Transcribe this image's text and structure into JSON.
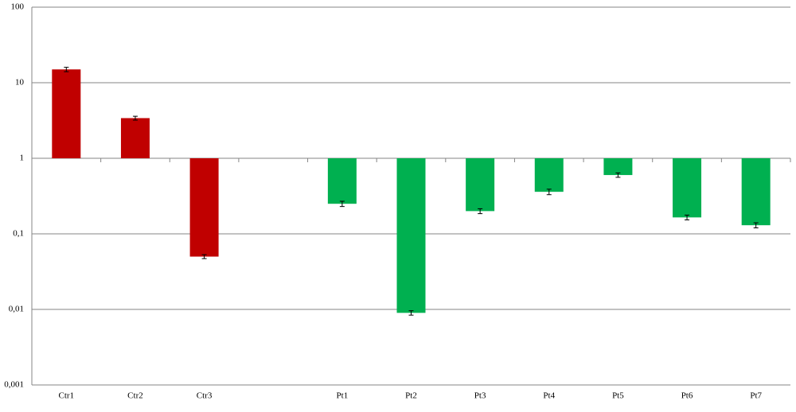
{
  "chart_data": {
    "type": "bar",
    "categories": [
      "Ctr1",
      "Ctr2",
      "Ctr3",
      null,
      "Pt1",
      "Pt2",
      "Pt3",
      "Pt4",
      "Pt5",
      "Pt6",
      "Pt7"
    ],
    "values": [
      15,
      3.4,
      0.05,
      null,
      0.25,
      0.009,
      0.2,
      0.36,
      0.6,
      0.165,
      0.13
    ],
    "errors": [
      1,
      0.2,
      0.003,
      null,
      0.02,
      0.0006,
      0.015,
      0.03,
      0.04,
      0.012,
      0.01
    ],
    "colors": [
      "#c00000",
      "#c00000",
      "#c00000",
      null,
      "#00b050",
      "#00b050",
      "#00b050",
      "#00b050",
      "#00b050",
      "#00b050",
      "#00b050"
    ],
    "ylim": [
      0.001,
      100
    ],
    "yticks": [
      {
        "value": 0.001,
        "label": "0,001"
      },
      {
        "value": 0.01,
        "label": "0,01"
      },
      {
        "value": 0.1,
        "label": "0,1"
      },
      1,
      10,
      100
    ],
    "log_scale": true,
    "grid": true
  }
}
